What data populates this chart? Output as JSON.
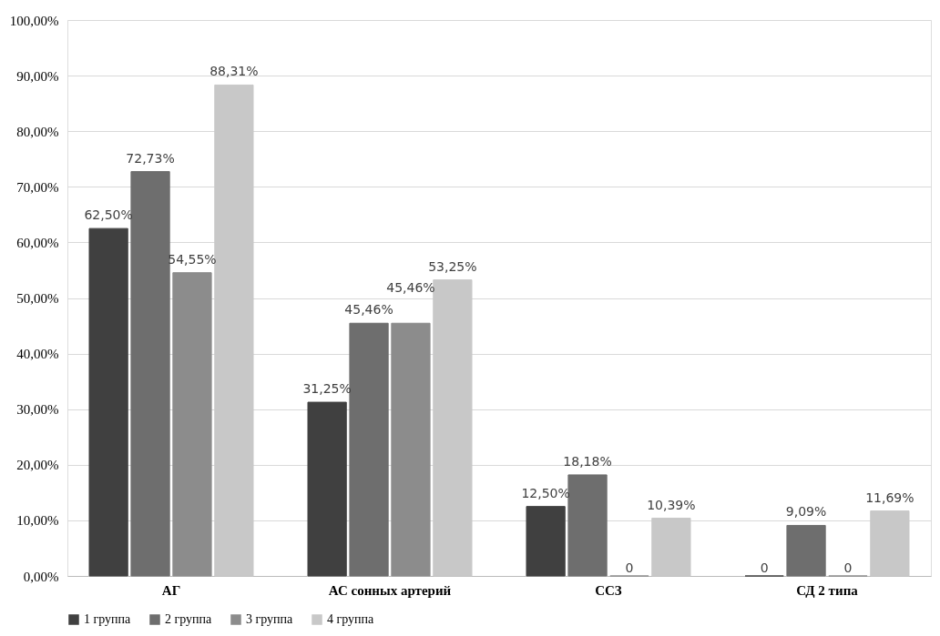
{
  "chart_data": {
    "type": "bar",
    "categories": [
      "АГ",
      "АС сонных артерий",
      "ССЗ",
      "СД 2 типа"
    ],
    "series": [
      {
        "name": "1 группа",
        "color": "#404040",
        "values": [
          62.5,
          31.25,
          12.5,
          0
        ],
        "value_labels": [
          "62,50%",
          "31,25%",
          "12,50%",
          "0"
        ]
      },
      {
        "name": "2 группа",
        "color": "#6e6e6e",
        "values": [
          72.73,
          45.46,
          18.18,
          9.09
        ],
        "value_labels": [
          "72,73%",
          "45,46%",
          "18,18%",
          "9,09%"
        ]
      },
      {
        "name": "3 группа",
        "color": "#8c8c8c",
        "values": [
          54.55,
          45.46,
          0,
          0
        ],
        "value_labels": [
          "54,55%",
          "45,46%",
          "0",
          "0"
        ]
      },
      {
        "name": "4 группа",
        "color": "#c8c8c8",
        "values": [
          88.31,
          53.25,
          10.39,
          11.69
        ],
        "value_labels": [
          "88,31%",
          "53,25%",
          "10,39%",
          "11,69%"
        ]
      }
    ],
    "ylim": [
      0,
      100
    ],
    "yticks": [
      {
        "value": 0,
        "label": "0,00%"
      },
      {
        "value": 10,
        "label": "10,00%"
      },
      {
        "value": 20,
        "label": "20,00%"
      },
      {
        "value": 30,
        "label": "30,00%"
      },
      {
        "value": 40,
        "label": "40,00%"
      },
      {
        "value": 50,
        "label": "50,00%"
      },
      {
        "value": 60,
        "label": "60,00%"
      },
      {
        "value": 70,
        "label": "70,00%"
      },
      {
        "value": 80,
        "label": "80,00%"
      },
      {
        "value": 90,
        "label": "90,00%"
      },
      {
        "value": 100,
        "label": "100,00%"
      }
    ],
    "grid": "y",
    "legend": "bottom"
  }
}
